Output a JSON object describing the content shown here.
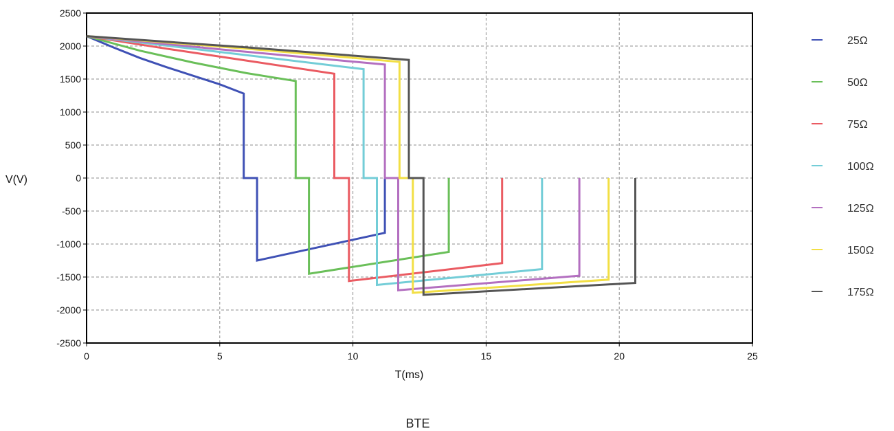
{
  "chart_data": {
    "type": "line",
    "title": "",
    "caption": "BTE",
    "xlabel": "T(ms)",
    "ylabel": "V(V)",
    "xlim": [
      0,
      25
    ],
    "ylim": [
      -2500,
      2500
    ],
    "xticks": [
      0,
      5,
      10,
      15,
      20,
      25
    ],
    "yticks": [
      2500,
      2000,
      1500,
      1000,
      500,
      0,
      -500,
      -1000,
      -1500,
      -2000,
      -2500
    ],
    "grid": true,
    "legend_position": "right",
    "series": [
      {
        "name": "25Ω",
        "color": "#3f51b5",
        "x": [
          0,
          1,
          2,
          3,
          4,
          5,
          5.9,
          5.9,
          6.4,
          6.4,
          11.2,
          11.2
        ],
        "y": [
          2150,
          1980,
          1820,
          1680,
          1550,
          1420,
          1280,
          0,
          0,
          -1250,
          -830,
          0
        ]
      },
      {
        "name": "50Ω",
        "color": "#6abf59",
        "x": [
          0,
          2,
          4,
          6,
          7.85,
          7.85,
          8.35,
          8.35,
          13.6,
          13.6
        ],
        "y": [
          2150,
          1930,
          1750,
          1590,
          1470,
          0,
          0,
          -1450,
          -1120,
          0
        ]
      },
      {
        "name": "75Ω",
        "color": "#ea5b62",
        "x": [
          0,
          3,
          6,
          9.3,
          9.3,
          9.85,
          9.85,
          15.6,
          15.6
        ],
        "y": [
          2150,
          1960,
          1780,
          1580,
          0,
          0,
          -1560,
          -1290,
          0
        ]
      },
      {
        "name": "100Ω",
        "color": "#73cdd7",
        "x": [
          0,
          5,
          10.4,
          10.4,
          10.9,
          10.9,
          17.1,
          17.1
        ],
        "y": [
          2150,
          1910,
          1650,
          0,
          0,
          -1620,
          -1380,
          0
        ]
      },
      {
        "name": "125Ω",
        "color": "#b36fc0",
        "x": [
          0,
          5,
          11.2,
          11.2,
          11.7,
          11.7,
          18.5,
          18.5
        ],
        "y": [
          2150,
          1950,
          1720,
          0,
          0,
          -1700,
          -1480,
          0
        ]
      },
      {
        "name": "150Ω",
        "color": "#f2df45",
        "x": [
          0,
          6,
          11.75,
          11.75,
          12.25,
          12.25,
          19.6,
          19.6
        ],
        "y": [
          2150,
          1960,
          1760,
          0,
          0,
          -1740,
          -1540,
          0
        ]
      },
      {
        "name": "175Ω",
        "color": "#555555",
        "x": [
          0,
          6,
          12.1,
          12.1,
          12.65,
          12.65,
          20.6,
          20.6
        ],
        "y": [
          2150,
          1980,
          1790,
          0,
          0,
          -1770,
          -1590,
          0
        ]
      }
    ]
  }
}
